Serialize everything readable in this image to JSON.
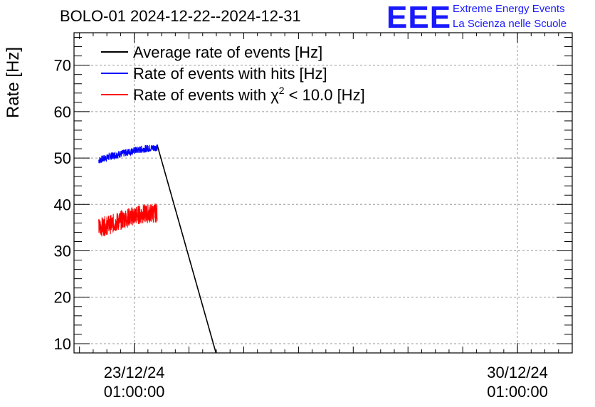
{
  "chart_data": {
    "type": "line",
    "title": "BOLO-01 2024-12-22--2024-12-31",
    "ylabel": "Rate [Hz]",
    "xlabel": "",
    "ylim": [
      8,
      77
    ],
    "grid": true,
    "legend_placement": "top-left",
    "y_ticks": [
      10,
      20,
      30,
      40,
      50,
      60,
      70
    ],
    "x_ticks": [
      {
        "date": "23/12/24",
        "time": "01:00:00",
        "day": 23.0
      },
      {
        "date": "30/12/24",
        "time": "01:00:00",
        "day": 30.0
      }
    ],
    "x_range_days": [
      21.9,
      31.0
    ],
    "series": [
      {
        "name": "Average rate of events [Hz]",
        "color": "#000000",
        "points": [
          [
            23.42,
            52.8
          ],
          [
            24.5,
            7.7
          ]
        ]
      },
      {
        "name": "Rate of events with hits [Hz]",
        "color": "#0000ff",
        "points": [
          [
            22.35,
            49.5
          ],
          [
            22.6,
            50.5
          ],
          [
            22.8,
            51.0
          ],
          [
            23.0,
            51.6
          ],
          [
            23.2,
            52.0
          ],
          [
            23.42,
            52.3
          ]
        ],
        "noise": 1.6
      },
      {
        "name": "Rate of events with χ² < 10.0 [Hz]",
        "color": "#ff0000",
        "points": [
          [
            22.35,
            35.0
          ],
          [
            22.6,
            35.8
          ],
          [
            22.8,
            36.8
          ],
          [
            23.0,
            37.6
          ],
          [
            23.2,
            38.0
          ],
          [
            23.42,
            38.2
          ]
        ],
        "noise": 4.2
      }
    ],
    "legend": [
      {
        "label_main": "Average rate of events [Hz]",
        "color": "#000000"
      },
      {
        "label_main": "Rate of events with hits [Hz]",
        "color": "#0000ff"
      },
      {
        "label_pre": "Rate of events with χ",
        "label_sup": "2",
        "label_post": " < 10.0 [Hz]",
        "color": "#ff0000"
      }
    ]
  },
  "logo": {
    "mark": "EEE",
    "line1": "Extreme Energy Events",
    "line2": "La Scienza nelle Scuole"
  }
}
